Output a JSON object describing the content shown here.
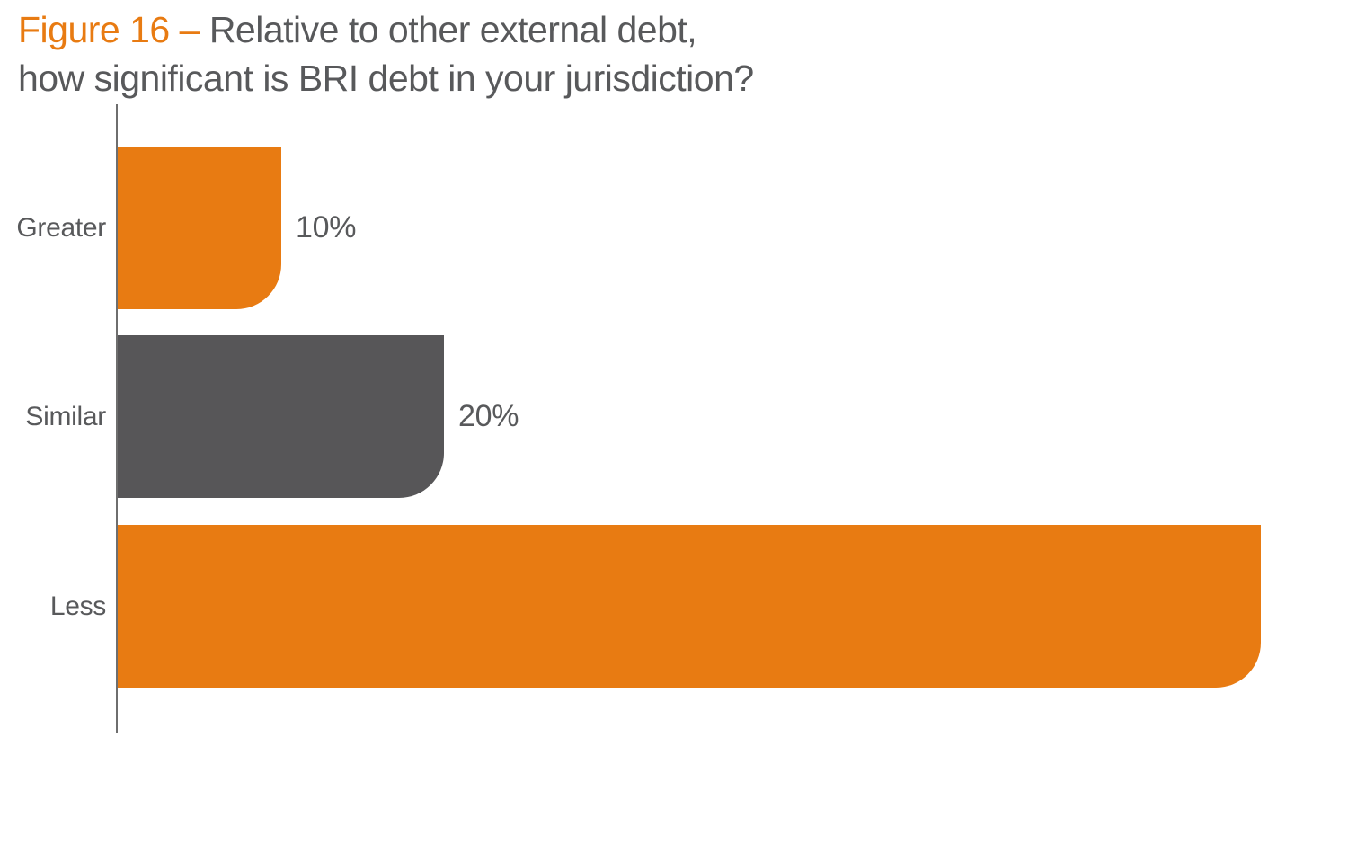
{
  "figure": {
    "label_with_dash": "Figure 16 –",
    "title_line1": "Relative to other external debt,",
    "title_line2": "how significant is BRI debt in your jurisdiction?"
  },
  "chart_data": {
    "type": "bar",
    "orientation": "horizontal",
    "title": "Figure 16 – Relative to other external debt, how significant is BRI debt in your jurisdiction?",
    "categories": [
      "Greater",
      "Similar",
      "Less"
    ],
    "values": [
      10,
      20,
      70
    ],
    "value_labels": [
      "10%",
      "20%",
      ""
    ],
    "unit": "percent",
    "xlim": [
      0,
      75
    ],
    "grid": false,
    "legend": false,
    "bar_colors": [
      "#E87B12",
      "#575658",
      "#E87B12"
    ]
  },
  "colors": {
    "accent_orange": "#E87B12",
    "bar_gray": "#575658",
    "text_gray": "#58595B",
    "axis_line": "#6E6E6E",
    "background": "#FFFFFF"
  }
}
